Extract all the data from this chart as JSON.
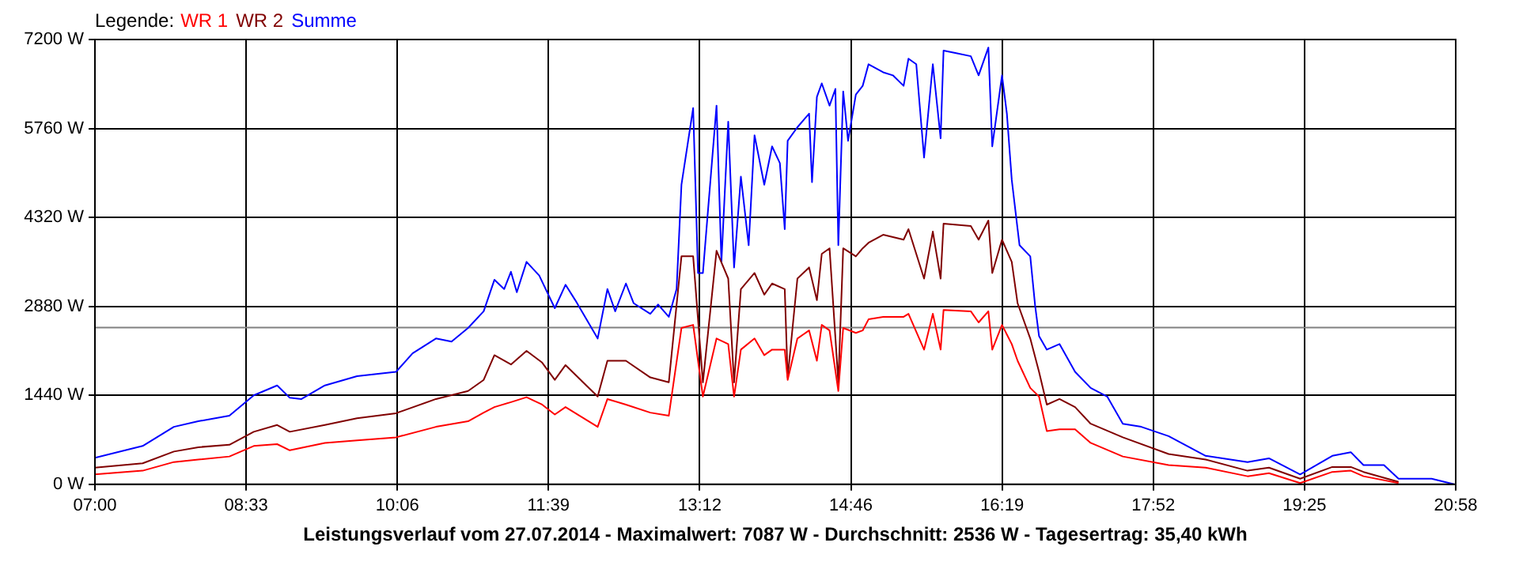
{
  "chart_data": {
    "type": "line",
    "xlabel": "Leistungsverlauf vom 27.07.2014 - Maximalwert: 7087 W - Durchschnitt: 2536 W - Tagesertrag: 35,40 kWh",
    "legend_title": "Legende:",
    "legend": "top left",
    "grid": true,
    "marker": "none",
    "line_style": "solid",
    "xlim": [
      7,
      20.9667
    ],
    "xticks": [
      {
        "value": 7,
        "label": "07:00"
      },
      {
        "value": 8.5519,
        "label": "08:33"
      },
      {
        "value": 10.1037,
        "label": "10:06"
      },
      {
        "value": 11.6556,
        "label": "11:39"
      },
      {
        "value": 13.2074,
        "label": "13:12"
      },
      {
        "value": 14.7593,
        "label": "14:46"
      },
      {
        "value": 16.3111,
        "label": "16:19"
      },
      {
        "value": 17.863,
        "label": "17:52"
      },
      {
        "value": 19.4148,
        "label": "19:25"
      },
      {
        "value": 20.9667,
        "label": "20:58"
      }
    ],
    "ylim": [
      0,
      7200
    ],
    "yticks": [
      {
        "value": 0,
        "label": "0 W"
      },
      {
        "value": 1440,
        "label": "1440 W"
      },
      {
        "value": 2880,
        "label": "2880 W"
      },
      {
        "value": 4320,
        "label": "4320 W"
      },
      {
        "value": 5760,
        "label": "5760 W"
      },
      {
        "value": 7200,
        "label": "7200 W"
      }
    ],
    "ref_lines": [
      {
        "axis": "y",
        "value": 2536,
        "color": "#808080"
      }
    ],
    "series": [
      {
        "name": "WR 1",
        "color": "#ff0000",
        "x": [
          7.0,
          7.49,
          7.81,
          8.06,
          8.38,
          8.63,
          8.87,
          9.0,
          9.36,
          9.69,
          10.09,
          10.5,
          10.83,
          10.99,
          11.1,
          11.27,
          11.43,
          11.59,
          11.72,
          11.83,
          12.16,
          12.26,
          12.45,
          12.7,
          12.89,
          13.02,
          13.14,
          13.24,
          13.38,
          13.5,
          13.56,
          13.63,
          13.77,
          13.87,
          13.95,
          14.08,
          14.11,
          14.21,
          14.33,
          14.41,
          14.46,
          14.54,
          14.63,
          14.68,
          14.81,
          14.88,
          14.94,
          15.09,
          15.3,
          15.35,
          15.51,
          15.6,
          15.68,
          15.71,
          15.99,
          16.07,
          16.17,
          16.21,
          16.31,
          16.41,
          16.47,
          16.6,
          16.69,
          16.77,
          16.9,
          17.06,
          17.22,
          17.55,
          18.02,
          18.4,
          18.83,
          19.05,
          19.37,
          19.7,
          19.89,
          20.02,
          20.38
        ],
        "values": [
          160,
          220,
          360,
          400,
          450,
          620,
          650,
          550,
          670,
          710,
          760,
          930,
          1020,
          1160,
          1250,
          1330,
          1410,
          1290,
          1130,
          1250,
          930,
          1380,
          1290,
          1160,
          1110,
          2530,
          2580,
          1420,
          2360,
          2270,
          1420,
          2180,
          2360,
          2090,
          2180,
          2180,
          1690,
          2360,
          2490,
          2000,
          2580,
          2490,
          1510,
          2530,
          2450,
          2490,
          2670,
          2710,
          2710,
          2760,
          2180,
          2760,
          2180,
          2820,
          2800,
          2620,
          2800,
          2180,
          2580,
          2270,
          2000,
          1560,
          1420,
          860,
          890,
          890,
          670,
          450,
          310,
          270,
          130,
          180,
          20,
          200,
          220,
          130,
          20
        ]
      },
      {
        "name": "WR 2",
        "color": "#800000",
        "x": [
          7.0,
          7.49,
          7.81,
          8.06,
          8.38,
          8.63,
          8.87,
          9.0,
          9.36,
          9.69,
          10.09,
          10.5,
          10.83,
          10.99,
          11.1,
          11.27,
          11.43,
          11.59,
          11.72,
          11.83,
          12.16,
          12.26,
          12.45,
          12.7,
          12.89,
          13.02,
          13.14,
          13.24,
          13.38,
          13.5,
          13.56,
          13.63,
          13.77,
          13.87,
          13.95,
          14.08,
          14.11,
          14.21,
          14.33,
          14.41,
          14.46,
          14.54,
          14.63,
          14.68,
          14.81,
          14.88,
          14.94,
          15.09,
          15.3,
          15.35,
          15.51,
          15.6,
          15.68,
          15.71,
          15.99,
          16.07,
          16.17,
          16.21,
          16.31,
          16.41,
          16.47,
          16.6,
          16.69,
          16.77,
          16.9,
          17.06,
          17.22,
          17.55,
          18.02,
          18.4,
          18.83,
          19.05,
          19.37,
          19.7,
          19.89,
          20.02,
          20.38
        ],
        "values": [
          270,
          340,
          530,
          600,
          640,
          850,
          960,
          850,
          960,
          1070,
          1150,
          1380,
          1510,
          1690,
          2090,
          1940,
          2160,
          1970,
          1690,
          1930,
          1420,
          2000,
          2000,
          1730,
          1650,
          3690,
          3690,
          1650,
          3780,
          3330,
          1650,
          3160,
          3420,
          3070,
          3250,
          3160,
          1730,
          3330,
          3510,
          2980,
          3730,
          3820,
          1650,
          3820,
          3690,
          3820,
          3910,
          4040,
          3960,
          4130,
          3330,
          4090,
          3330,
          4220,
          4180,
          3960,
          4270,
          3420,
          3960,
          3600,
          2930,
          2360,
          1820,
          1290,
          1380,
          1250,
          980,
          760,
          490,
          400,
          220,
          270,
          90,
          280,
          280,
          200,
          40
        ]
      },
      {
        "name": "Summe",
        "color": "#0000ff",
        "x": [
          7.0,
          7.49,
          7.81,
          8.06,
          8.38,
          8.63,
          8.87,
          9.0,
          9.12,
          9.36,
          9.69,
          10.09,
          10.26,
          10.5,
          10.66,
          10.83,
          10.99,
          11.1,
          11.2,
          11.27,
          11.33,
          11.43,
          11.56,
          11.72,
          11.83,
          11.93,
          12.16,
          12.26,
          12.34,
          12.45,
          12.53,
          12.7,
          12.78,
          12.89,
          12.97,
          13.02,
          13.14,
          13.19,
          13.24,
          13.38,
          13.43,
          13.5,
          13.56,
          13.63,
          13.71,
          13.77,
          13.87,
          13.95,
          14.03,
          14.08,
          14.11,
          14.21,
          14.33,
          14.36,
          14.41,
          14.46,
          14.54,
          14.6,
          14.63,
          14.68,
          14.73,
          14.81,
          14.88,
          14.94,
          15.09,
          15.19,
          15.3,
          15.35,
          15.43,
          15.51,
          15.6,
          15.68,
          15.71,
          15.84,
          15.99,
          16.07,
          16.17,
          16.21,
          16.31,
          16.36,
          16.41,
          16.47,
          16.49,
          16.6,
          16.65,
          16.69,
          16.77,
          16.9,
          17.06,
          17.22,
          17.39,
          17.55,
          17.74,
          18.02,
          18.4,
          18.83,
          19.05,
          19.37,
          19.7,
          19.89,
          20.02,
          20.23,
          20.38,
          20.72,
          20.95
        ],
        "values": [
          430,
          620,
          930,
          1020,
          1110,
          1440,
          1600,
          1400,
          1380,
          1600,
          1750,
          1820,
          2120,
          2360,
          2310,
          2530,
          2800,
          3310,
          3160,
          3440,
          3110,
          3600,
          3380,
          2850,
          3230,
          2980,
          2360,
          3160,
          2800,
          3250,
          2930,
          2760,
          2910,
          2710,
          3160,
          4850,
          6090,
          3420,
          3420,
          6130,
          3600,
          5870,
          3510,
          4980,
          3870,
          5650,
          4850,
          5470,
          5200,
          4130,
          5560,
          5780,
          6000,
          4890,
          6270,
          6490,
          6130,
          6400,
          3870,
          6360,
          5560,
          6310,
          6450,
          6800,
          6670,
          6620,
          6450,
          6890,
          6800,
          5290,
          6800,
          5600,
          7020,
          6980,
          6930,
          6620,
          7070,
          5470,
          6620,
          6000,
          4930,
          4130,
          3870,
          3690,
          2890,
          2400,
          2180,
          2270,
          1820,
          1560,
          1420,
          980,
          930,
          780,
          460,
          360,
          420,
          160,
          460,
          520,
          310,
          310,
          90,
          90,
          0
        ]
      }
    ]
  }
}
